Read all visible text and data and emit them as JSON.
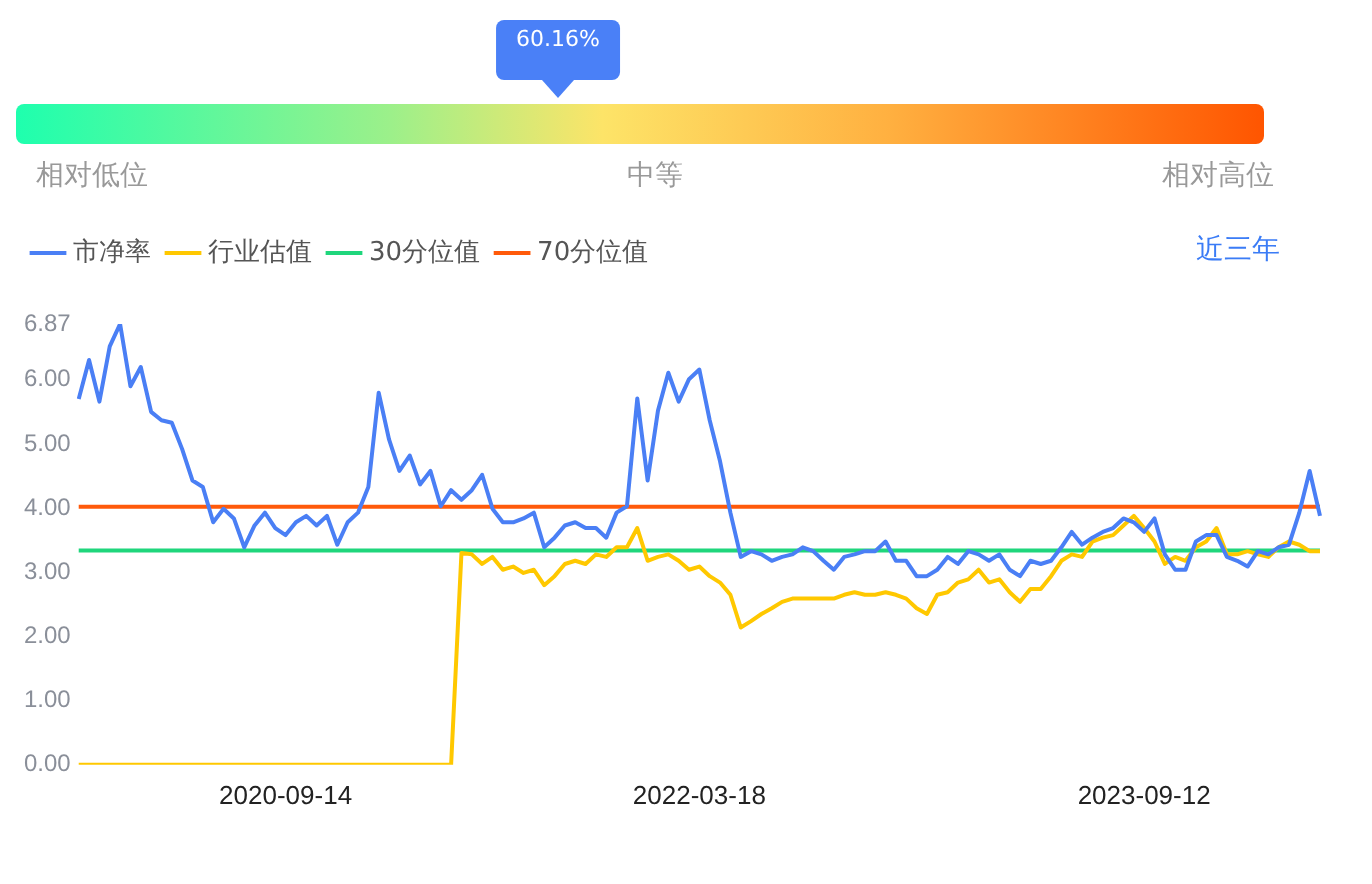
{
  "chart_data": [
    {
      "type": "other",
      "annotations": [
        "60.16%",
        "相对低位",
        "中等",
        "相对高位"
      ]
    },
    {
      "type": "line",
      "legend": "top left",
      "marker": "none",
      "annotations": [
        "近三年"
      ],
      "categories": [
        null,
        null,
        null,
        null,
        null,
        null,
        null,
        null,
        null,
        null,
        null,
        null,
        null,
        null,
        null,
        null,
        null,
        null,
        null,
        null,
        "2020-09-14",
        null,
        null,
        null,
        null,
        null,
        null,
        null,
        null,
        null,
        null,
        null,
        null,
        null,
        null,
        null,
        null,
        null,
        null,
        null,
        null,
        null,
        null,
        null,
        null,
        null,
        null,
        null,
        null,
        null,
        null,
        null,
        null,
        null,
        null,
        null,
        null,
        null,
        null,
        null,
        "2022-03-18",
        null,
        null,
        null,
        null,
        null,
        null,
        null,
        null,
        null,
        null,
        null,
        null,
        null,
        null,
        null,
        null,
        null,
        null,
        null,
        null,
        null,
        null,
        null,
        null,
        null,
        null,
        null,
        null,
        null,
        null,
        null,
        null,
        null,
        null,
        null,
        null,
        null,
        null,
        null,
        null,
        null,
        null,
        "2023-09-12",
        null,
        null,
        null,
        null,
        null,
        null,
        null,
        null,
        null,
        null,
        null,
        null,
        null,
        null,
        null,
        null,
        null
      ],
      "ylim": [
        0,
        6.87
      ],
      "yticks": [
        {
          "value": 0,
          "label": "0.00"
        },
        {
          "value": 1,
          "label": "1.00"
        },
        {
          "value": 2,
          "label": "2.00"
        },
        {
          "value": 3,
          "label": "3.00"
        },
        {
          "value": 4,
          "label": "4.00"
        },
        {
          "value": 5,
          "label": "5.00"
        },
        {
          "value": 6,
          "label": "6.00"
        },
        6.87
      ],
      "series": [
        {
          "name": "市净率",
          "color": "#4a7ff5",
          "values": [
            5.7,
            6.31,
            5.66,
            6.52,
            6.87,
            5.9,
            6.2,
            5.5,
            5.37,
            5.33,
            4.92,
            4.43,
            4.33,
            3.78,
            3.99,
            3.84,
            3.39,
            3.73,
            3.93,
            3.69,
            3.58,
            3.78,
            3.88,
            3.73,
            3.88,
            3.43,
            3.78,
            3.93,
            4.33,
            5.8,
            5.07,
            4.58,
            4.82,
            4.37,
            4.58,
            4.03,
            4.28,
            4.13,
            4.28,
            4.52,
            3.99,
            3.78,
            3.78,
            3.84,
            3.93,
            3.39,
            3.54,
            3.73,
            3.78,
            3.69,
            3.69,
            3.54,
            3.93,
            4.03,
            5.71,
            4.43,
            5.52,
            6.11,
            5.66,
            6.01,
            6.16,
            5.37,
            4.73,
            3.93,
            3.24,
            3.33,
            3.28,
            3.18,
            3.24,
            3.28,
            3.39,
            3.33,
            3.18,
            3.04,
            3.24,
            3.28,
            3.33,
            3.33,
            3.48,
            3.18,
            3.18,
            2.94,
            2.94,
            3.04,
            3.24,
            3.13,
            3.33,
            3.28,
            3.18,
            3.28,
            3.04,
            2.94,
            3.18,
            3.13,
            3.18,
            3.39,
            3.63,
            3.43,
            3.54,
            3.63,
            3.69,
            3.84,
            3.78,
            3.63,
            3.84,
            3.28,
            3.04,
            3.04,
            3.48,
            3.58,
            3.58,
            3.24,
            3.18,
            3.09,
            3.33,
            3.28,
            3.39,
            3.43,
            3.93,
            4.58,
            3.88
          ]
        },
        {
          "name": "行业估值",
          "color": "#ffc800",
          "values": [
            0,
            0,
            0,
            0,
            0,
            0,
            0,
            0,
            0,
            0,
            0,
            0,
            0,
            0,
            0,
            0,
            0,
            0,
            0,
            0,
            0,
            0,
            0,
            0,
            0,
            0,
            0,
            0,
            0,
            0,
            0,
            0,
            0,
            0,
            0,
            0,
            0,
            3.3,
            3.28,
            3.13,
            3.24,
            3.04,
            3.09,
            2.99,
            3.04,
            2.8,
            2.94,
            3.13,
            3.18,
            3.13,
            3.28,
            3.24,
            3.39,
            3.39,
            3.69,
            3.18,
            3.24,
            3.28,
            3.18,
            3.04,
            3.09,
            2.94,
            2.84,
            2.65,
            2.14,
            2.24,
            2.35,
            2.44,
            2.54,
            2.59,
            2.59,
            2.59,
            2.59,
            2.59,
            2.65,
            2.69,
            2.65,
            2.65,
            2.69,
            2.65,
            2.59,
            2.44,
            2.35,
            2.65,
            2.69,
            2.84,
            2.89,
            3.04,
            2.84,
            2.89,
            2.69,
            2.54,
            2.74,
            2.74,
            2.94,
            3.18,
            3.28,
            3.24,
            3.48,
            3.54,
            3.58,
            3.73,
            3.88,
            3.69,
            3.48,
            3.13,
            3.24,
            3.18,
            3.39,
            3.48,
            3.69,
            3.28,
            3.28,
            3.33,
            3.28,
            3.24,
            3.39,
            3.48,
            3.43,
            3.33,
            3.33
          ]
        },
        {
          "name": "30分位值",
          "color": "#1fd67c",
          "values": [
            3.34,
            3.34,
            3.34,
            3.34,
            3.34,
            3.34,
            3.34,
            3.34,
            3.34,
            3.34,
            3.34,
            3.34,
            3.34,
            3.34,
            3.34,
            3.34,
            3.34,
            3.34,
            3.34,
            3.34,
            3.34,
            3.34,
            3.34,
            3.34,
            3.34,
            3.34,
            3.34,
            3.34,
            3.34,
            3.34,
            3.34,
            3.34,
            3.34,
            3.34,
            3.34,
            3.34,
            3.34,
            3.34,
            3.34,
            3.34,
            3.34,
            3.34,
            3.34,
            3.34,
            3.34,
            3.34,
            3.34,
            3.34,
            3.34,
            3.34,
            3.34,
            3.34,
            3.34,
            3.34,
            3.34,
            3.34,
            3.34,
            3.34,
            3.34,
            3.34,
            3.34,
            3.34,
            3.34,
            3.34,
            3.34,
            3.34,
            3.34,
            3.34,
            3.34,
            3.34,
            3.34,
            3.34,
            3.34,
            3.34,
            3.34,
            3.34,
            3.34,
            3.34,
            3.34,
            3.34,
            3.34,
            3.34,
            3.34,
            3.34,
            3.34,
            3.34,
            3.34,
            3.34,
            3.34,
            3.34,
            3.34,
            3.34,
            3.34,
            3.34,
            3.34,
            3.34,
            3.34,
            3.34,
            3.34,
            3.34,
            3.34,
            3.34,
            3.34,
            3.34,
            3.34,
            3.34,
            3.34,
            3.34,
            3.34,
            3.34,
            3.34,
            3.34,
            3.34,
            3.34,
            3.34,
            3.34,
            3.34,
            3.34,
            3.34,
            3.34,
            3.34
          ]
        },
        {
          "name": "70分位值",
          "color": "#ff5a0a",
          "values": [
            4.02,
            4.02,
            4.02,
            4.02,
            4.02,
            4.02,
            4.02,
            4.02,
            4.02,
            4.02,
            4.02,
            4.02,
            4.02,
            4.02,
            4.02,
            4.02,
            4.02,
            4.02,
            4.02,
            4.02,
            4.02,
            4.02,
            4.02,
            4.02,
            4.02,
            4.02,
            4.02,
            4.02,
            4.02,
            4.02,
            4.02,
            4.02,
            4.02,
            4.02,
            4.02,
            4.02,
            4.02,
            4.02,
            4.02,
            4.02,
            4.02,
            4.02,
            4.02,
            4.02,
            4.02,
            4.02,
            4.02,
            4.02,
            4.02,
            4.02,
            4.02,
            4.02,
            4.02,
            4.02,
            4.02,
            4.02,
            4.02,
            4.02,
            4.02,
            4.02,
            4.02,
            4.02,
            4.02,
            4.02,
            4.02,
            4.02,
            4.02,
            4.02,
            4.02,
            4.02,
            4.02,
            4.02,
            4.02,
            4.02,
            4.02,
            4.02,
            4.02,
            4.02,
            4.02,
            4.02,
            4.02,
            4.02,
            4.02,
            4.02,
            4.02,
            4.02,
            4.02,
            4.02,
            4.02,
            4.02,
            4.02,
            4.02,
            4.02,
            4.02,
            4.02,
            4.02,
            4.02,
            4.02,
            4.02,
            4.02,
            4.02,
            4.02,
            4.02,
            4.02,
            4.02,
            4.02,
            4.02,
            4.02,
            4.02,
            4.02,
            4.02,
            4.02,
            4.02,
            4.02,
            4.02,
            4.02,
            4.02,
            4.02,
            4.02,
            4.02,
            4.02
          ]
        }
      ]
    }
  ]
}
